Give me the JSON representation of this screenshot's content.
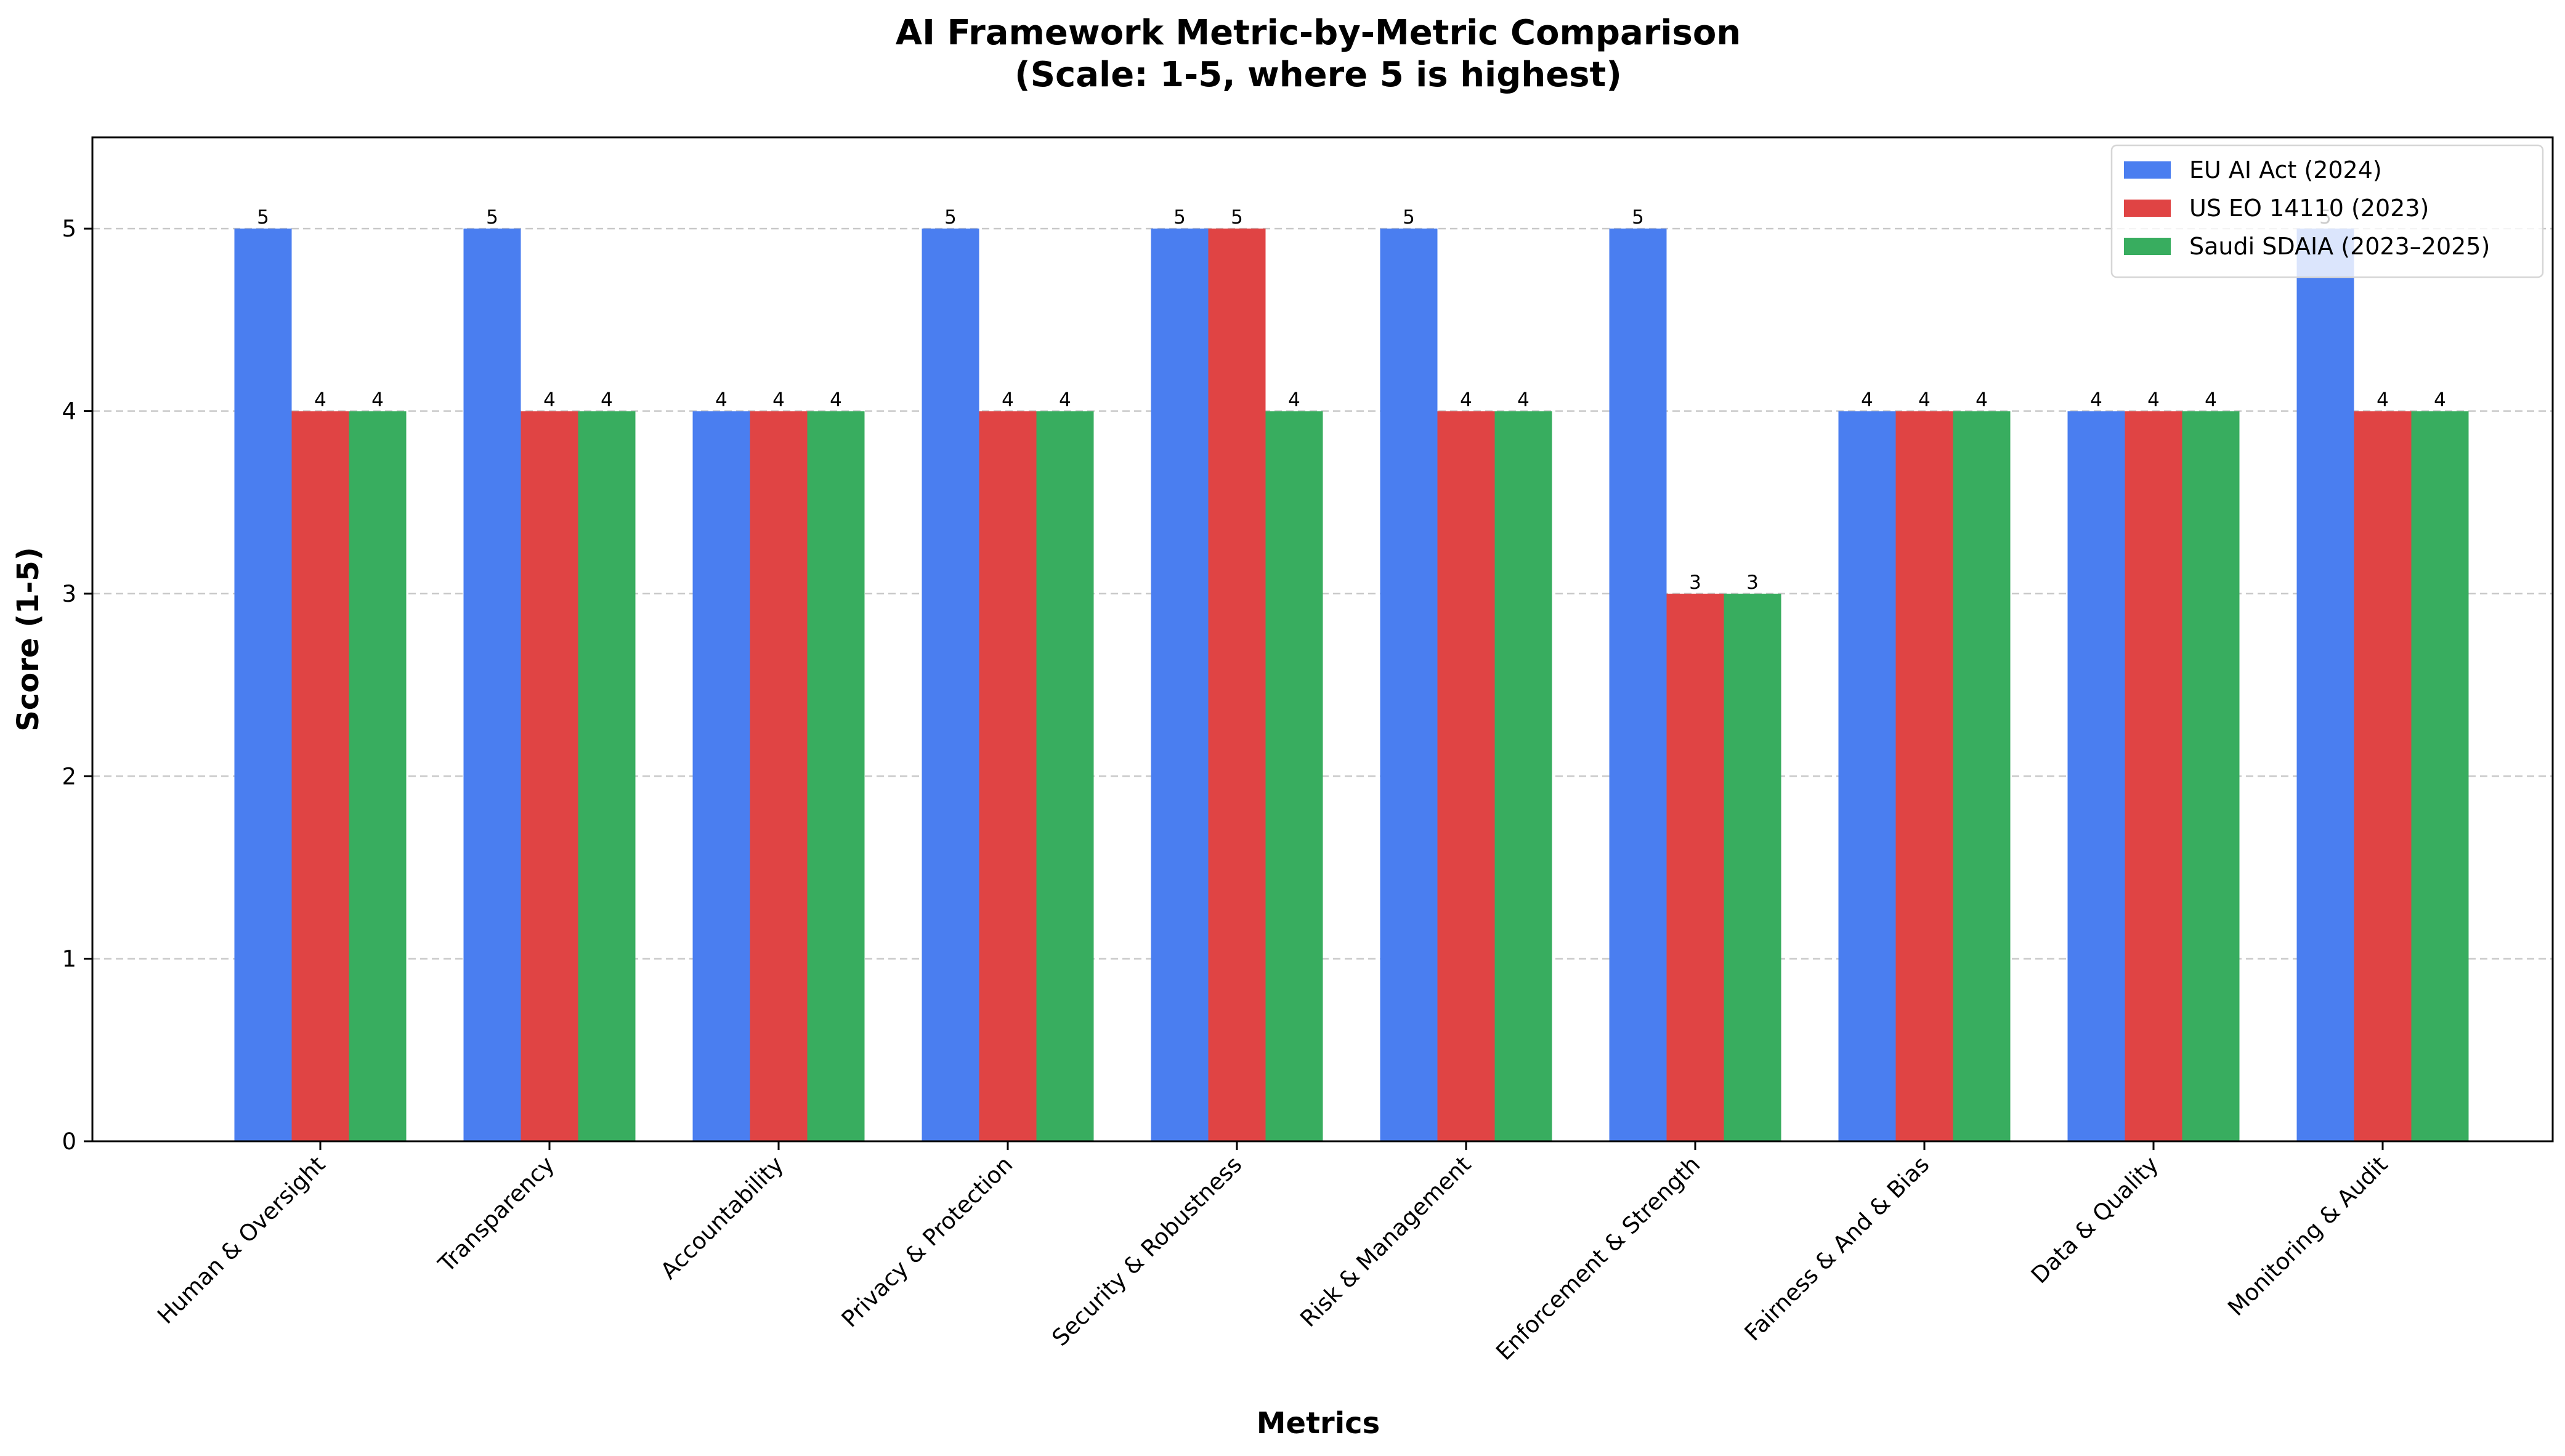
{
  "chart_data": {
    "type": "bar",
    "title_lines": [
      "AI Framework Metric-by-Metric Comparison",
      "(Scale: 1-5, where 5 is highest)"
    ],
    "xlabel": "Metrics",
    "ylabel": "Score (1-5)",
    "ylim": [
      0,
      5.5
    ],
    "yticks": [
      "0",
      "1",
      "2",
      "3",
      "4",
      "5"
    ],
    "grid": "horizontal-dashed",
    "legend_position": "top-right",
    "categories": [
      "Human & Oversight",
      "Transparency",
      "Accountability",
      "Privacy & Protection",
      "Security & Robustness",
      "Risk & Management",
      "Enforcement & Strength",
      "Fairness & And & Bias",
      "Data & Quality",
      "Monitoring & Audit"
    ],
    "series": [
      {
        "name": "EU AI Act (2024)",
        "color": "#4a7ef0",
        "values": [
          5,
          5,
          4,
          5,
          5,
          5,
          5,
          4,
          4,
          5
        ]
      },
      {
        "name": "US EO 14110 (2023)",
        "color": "#e04444",
        "values": [
          4,
          4,
          4,
          4,
          5,
          4,
          3,
          4,
          4,
          4
        ]
      },
      {
        "name": "Saudi SDAIA (2023–2025)",
        "color": "#38ad5f",
        "values": [
          4,
          4,
          4,
          4,
          4,
          4,
          3,
          4,
          4,
          4
        ]
      }
    ]
  }
}
